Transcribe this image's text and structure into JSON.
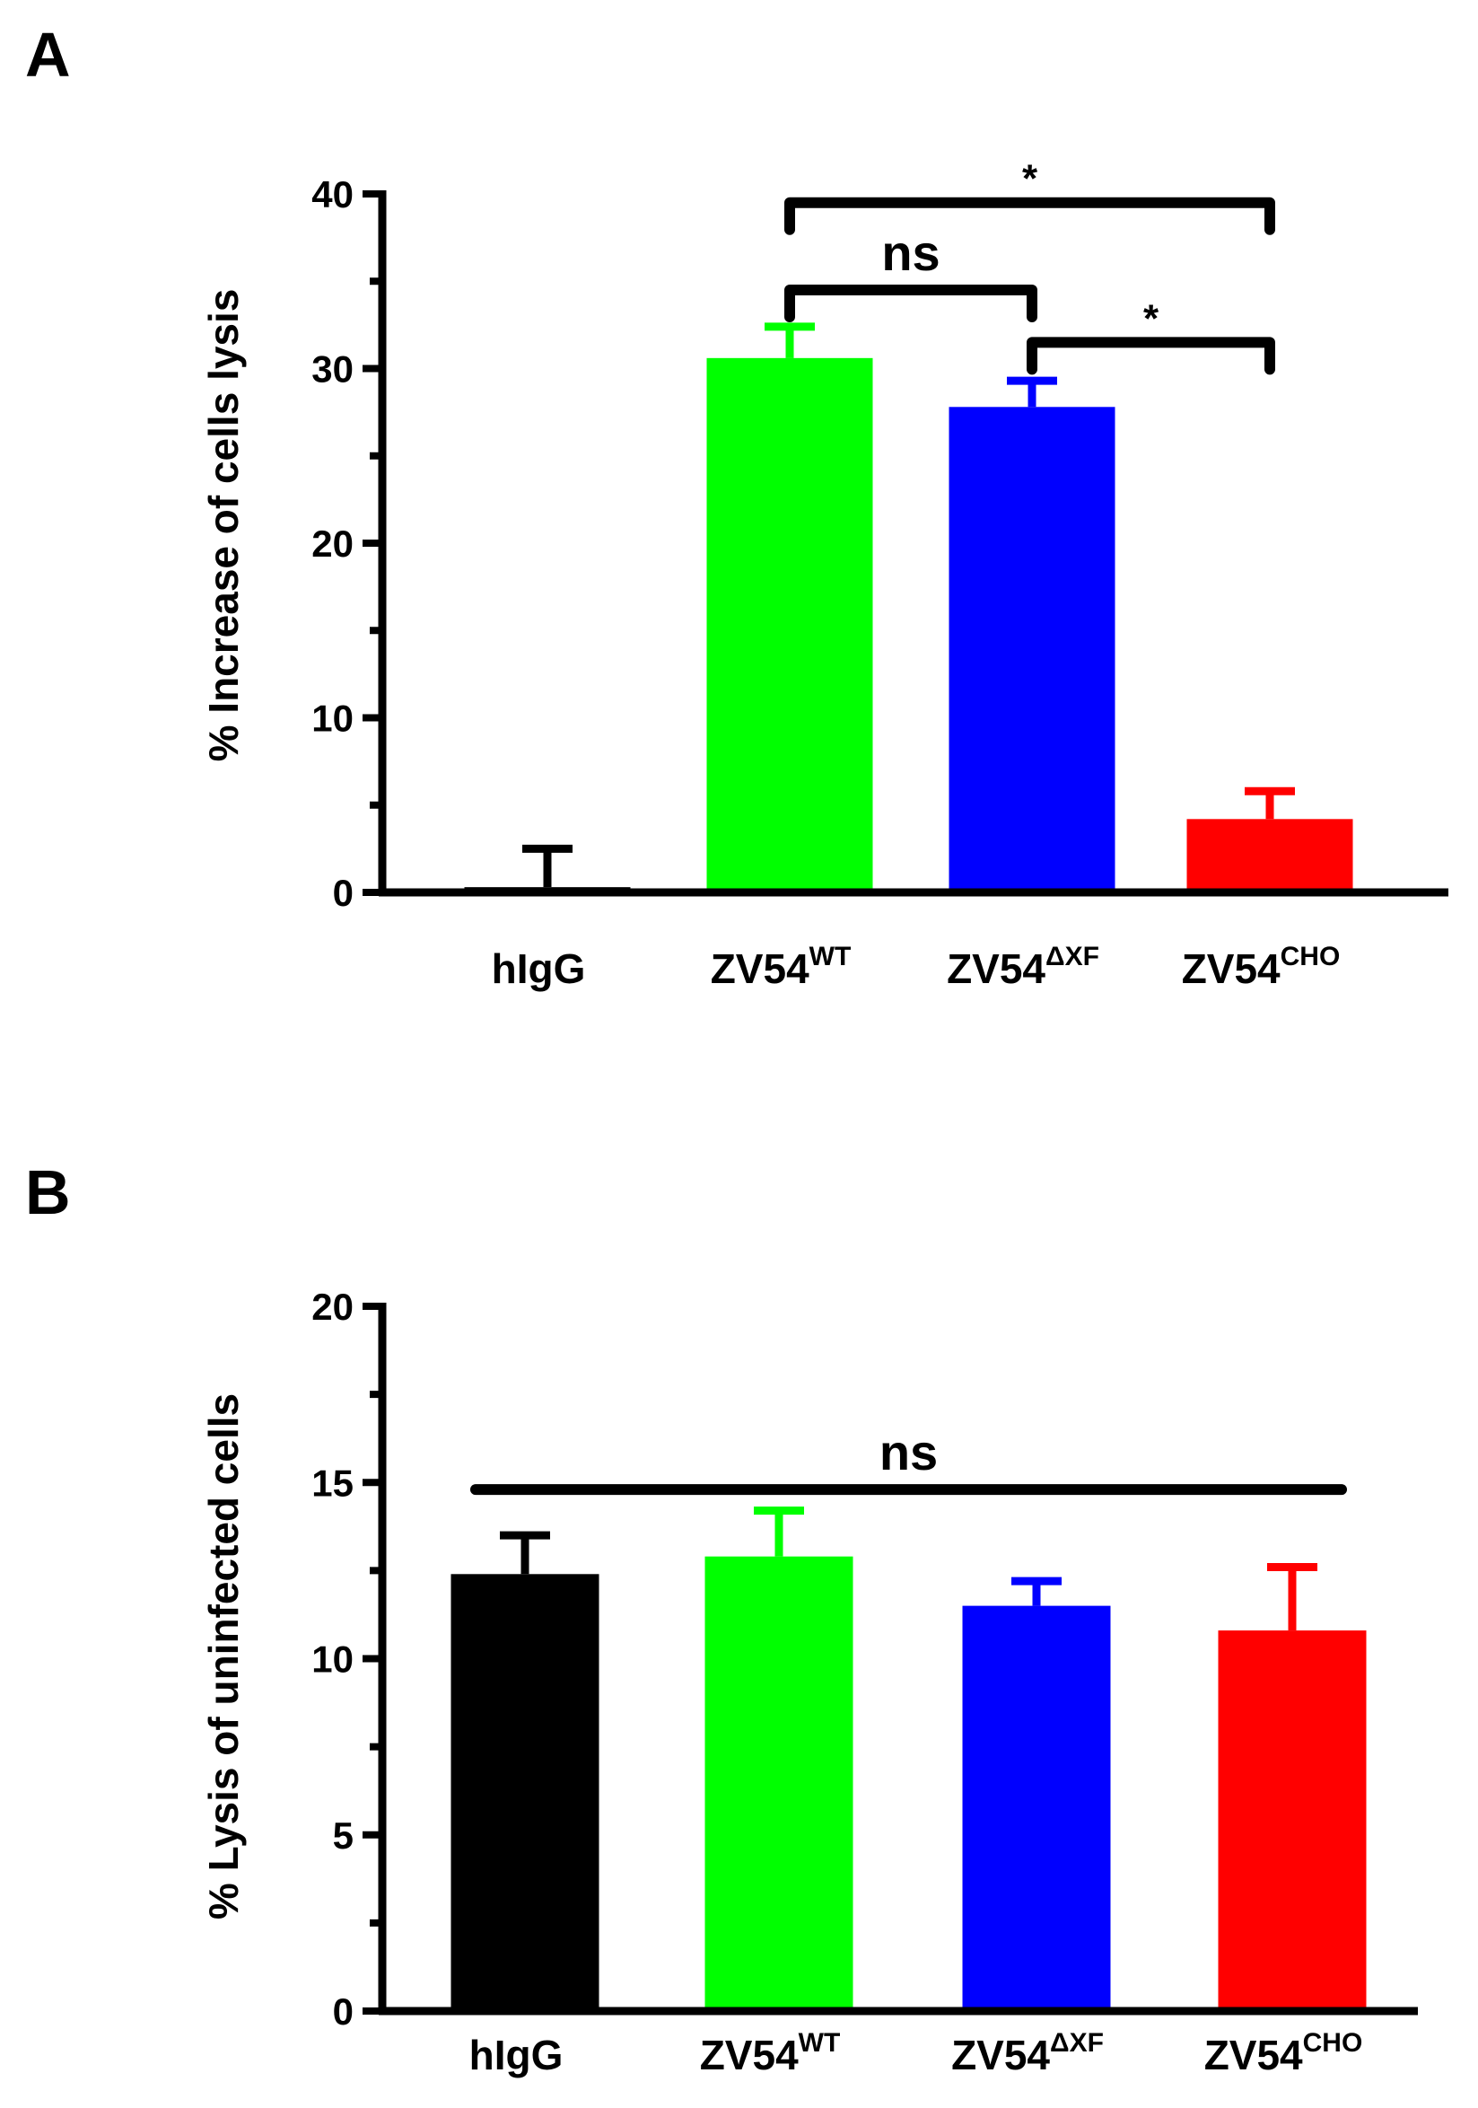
{
  "chart_data": [
    {
      "panel_label": "A",
      "type": "bar",
      "categories": [
        {
          "base": "hIgG",
          "sup": ""
        },
        {
          "base": "ZV54",
          "sup": "WT"
        },
        {
          "base": "ZV54",
          "sup": "ΔXF"
        },
        {
          "base": "ZV54",
          "sup": "CHO"
        }
      ],
      "values": [
        0.3,
        30.6,
        27.8,
        4.2
      ],
      "errors": [
        2.2,
        1.8,
        1.5,
        1.6
      ],
      "colors": [
        "#000000",
        "#00ff00",
        "#0000ff",
        "#ff0000"
      ],
      "ylabel": "% Increase of cells lysis",
      "ylim": [
        0,
        40
      ],
      "yticks": [
        0,
        10,
        20,
        30,
        40
      ],
      "grid": false,
      "significance": [
        {
          "from": 1,
          "to": 3,
          "label": "*",
          "level": 39.5
        },
        {
          "from": 1,
          "to": 2,
          "label": "ns",
          "level": 34.5
        },
        {
          "from": 2,
          "to": 3,
          "label": "*",
          "level": 31.5
        }
      ]
    },
    {
      "panel_label": "B",
      "type": "bar",
      "categories": [
        {
          "base": "hIgG",
          "sup": ""
        },
        {
          "base": "ZV54",
          "sup": "WT"
        },
        {
          "base": "ZV54",
          "sup": "ΔXF"
        },
        {
          "base": "ZV54",
          "sup": "CHO"
        }
      ],
      "values": [
        12.4,
        12.9,
        11.5,
        10.8
      ],
      "errors": [
        1.1,
        1.3,
        0.7,
        1.8
      ],
      "colors": [
        "#000000",
        "#00ff00",
        "#0000ff",
        "#ff0000"
      ],
      "ylabel": "% Lysis of uninfected cells",
      "ylim": [
        0,
        20
      ],
      "yticks": [
        0,
        5,
        10,
        15,
        20
      ],
      "grid": false,
      "significance": [
        {
          "from": 0,
          "to": 3,
          "label": "ns",
          "level": 14.8,
          "flat": true
        }
      ]
    }
  ]
}
